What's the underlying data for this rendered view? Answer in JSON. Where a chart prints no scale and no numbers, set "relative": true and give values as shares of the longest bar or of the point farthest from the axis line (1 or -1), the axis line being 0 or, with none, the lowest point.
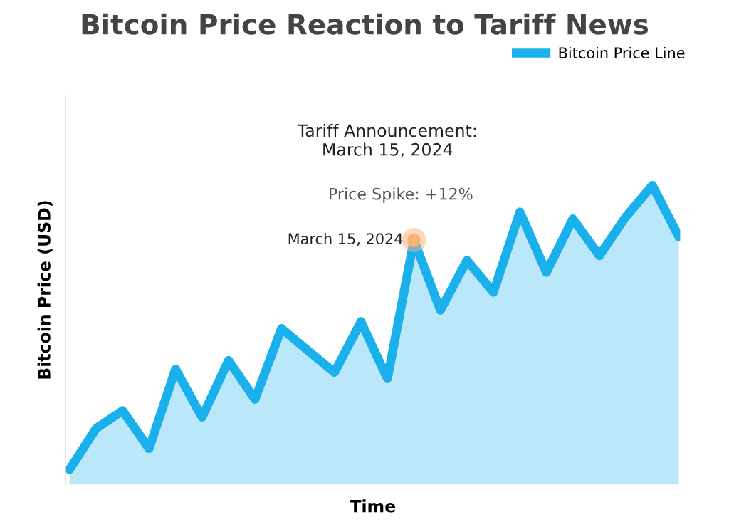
{
  "chart_data": {
    "type": "area",
    "title": "Bitcoin Price Reaction to Tariff News",
    "xlabel": "Time",
    "ylabel": "Bitcoin Price (USD)",
    "relative": true,
    "legend": "top right",
    "grid": false,
    "marker": "none",
    "line_style": "solid",
    "categories": [
      null,
      null,
      null,
      null,
      null,
      null,
      null,
      null,
      null,
      null,
      null,
      null,
      null,
      null,
      null,
      null,
      null,
      null,
      null,
      null,
      null,
      null,
      null,
      null
    ],
    "series": [
      {
        "name": "Bitcoin Price Line",
        "color": "#1ab0ec",
        "values": [
          0.049,
          0.186,
          0.246,
          0.119,
          0.385,
          0.224,
          0.414,
          0.284,
          0.521,
          0.447,
          0.374,
          0.544,
          0.353,
          0.817,
          0.582,
          0.749,
          0.642,
          0.911,
          0.709,
          0.888,
          0.765,
          0.895,
          1,
          0.828
        ]
      }
    ],
    "annotations": [
      "Tariff Announcement:\nMarch 15, 2024",
      "Price Spike: +12%",
      "March 15, 2024"
    ]
  }
}
